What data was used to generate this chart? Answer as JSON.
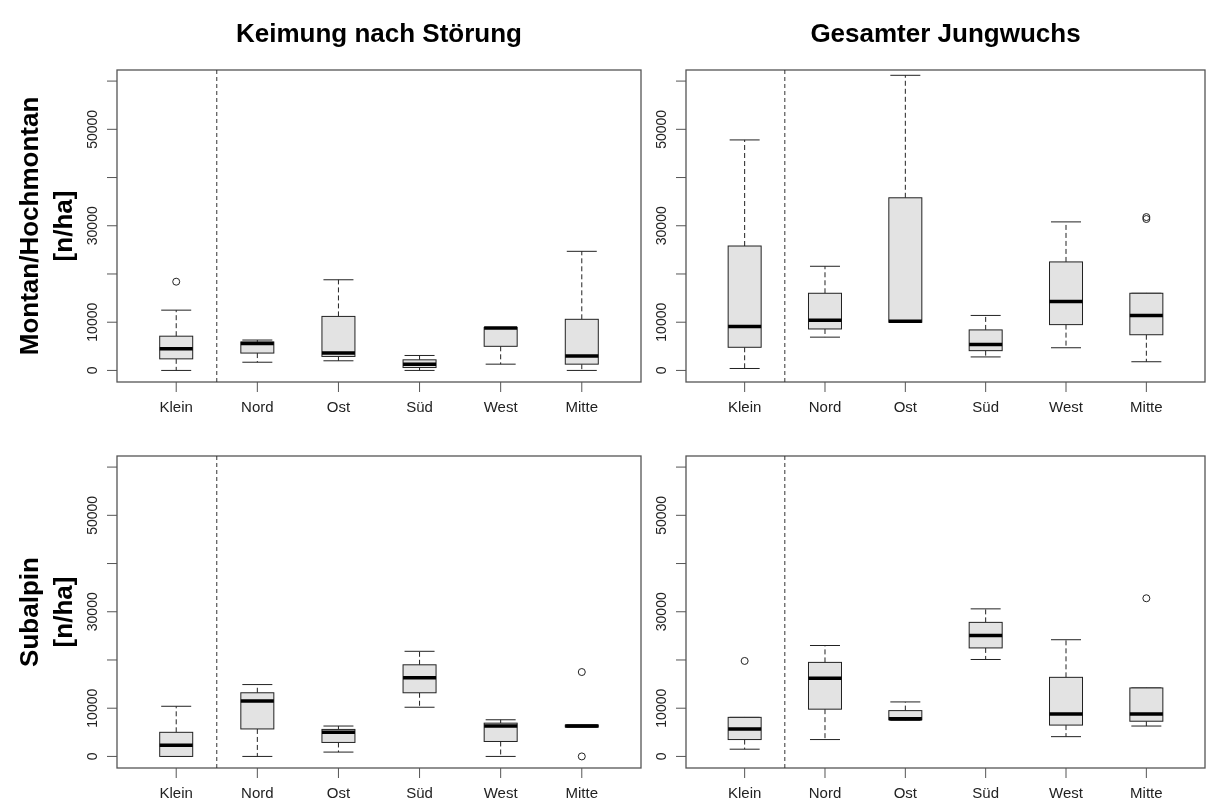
{
  "chart_data": [
    {
      "type": "box",
      "title": "Keimung nach Störung",
      "ylabel": "Montan/Hochmontan [n/ha]",
      "categories": [
        "Klein",
        "Nord",
        "Ost",
        "Süd",
        "West",
        "Mitte"
      ],
      "color": "#e3e3e3",
      "ylim": [
        -2400,
        62300
      ],
      "yticks": [
        0,
        10000,
        {
          "value": 20000,
          "label": null
        },
        30000,
        {
          "value": 40000,
          "label": null
        },
        50000,
        {
          "value": 60000,
          "label": null
        }
      ],
      "boxes": [
        {
          "low": 0,
          "q1": 2400,
          "median": 4500,
          "q3": 7100,
          "high": 12500,
          "outliers": [
            18400
          ]
        },
        {
          "low": 1700,
          "q1": 3600,
          "median": 5600,
          "q3": 5900,
          "high": 6300
        },
        {
          "low": 2000,
          "q1": 2900,
          "median": 3600,
          "q3": 11200,
          "high": 18800
        },
        {
          "low": 0,
          "q1": 600,
          "median": 1300,
          "q3": 2200,
          "high": 3100
        },
        {
          "low": 1300,
          "q1": 5000,
          "median": 8800,
          "q3": 8900,
          "high": 8900
        },
        {
          "low": 0,
          "q1": 1300,
          "median": 3000,
          "q3": 10600,
          "high": 24700
        }
      ]
    },
    {
      "type": "box",
      "title": "Gesamter Jungwuchs",
      "categories": [
        "Klein",
        "Nord",
        "Ost",
        "Süd",
        "West",
        "Mitte"
      ],
      "color": "#e3e3e3",
      "ylim": [
        -2400,
        62300
      ],
      "yticks": [
        0,
        10000,
        {
          "value": 20000,
          "label": null
        },
        30000,
        {
          "value": 40000,
          "label": null
        },
        50000,
        {
          "value": 60000,
          "label": null
        }
      ],
      "boxes": [
        {
          "low": 400,
          "q1": 4800,
          "median": 9100,
          "q3": 25800,
          "high": 47800
        },
        {
          "low": 6900,
          "q1": 8600,
          "median": 10400,
          "q3": 16000,
          "high": 21600
        },
        {
          "low": 10000,
          "q1": 10000,
          "median": 10200,
          "q3": 35800,
          "high": 61200
        },
        {
          "low": 2800,
          "q1": 4100,
          "median": 5400,
          "q3": 8400,
          "high": 11400
        },
        {
          "low": 4700,
          "q1": 9500,
          "median": 14300,
          "q3": 22500,
          "high": 30800
        },
        {
          "low": 1800,
          "q1": 7400,
          "median": 11400,
          "q3": 16000,
          "high": 16000,
          "outliers": [
            31400,
            31800
          ]
        }
      ]
    },
    {
      "type": "box",
      "ylabel": "Subalpin [n/ha]",
      "categories": [
        "Klein",
        "Nord",
        "Ost",
        "Süd",
        "West",
        "Mitte"
      ],
      "color": "#e3e3e3",
      "ylim": [
        -2400,
        62300
      ],
      "yticks": [
        0,
        10000,
        {
          "value": 20000,
          "label": null
        },
        30000,
        {
          "value": 40000,
          "label": null
        },
        50000,
        {
          "value": 60000,
          "label": null
        }
      ],
      "boxes": [
        {
          "low": 0,
          "q1": 0,
          "median": 2300,
          "q3": 5000,
          "high": 10400
        },
        {
          "low": 0,
          "q1": 5700,
          "median": 11500,
          "q3": 13200,
          "high": 14900
        },
        {
          "low": 900,
          "q1": 2900,
          "median": 5000,
          "q3": 5600,
          "high": 6300
        },
        {
          "low": 10200,
          "q1": 13200,
          "median": 16300,
          "q3": 19000,
          "high": 21800
        },
        {
          "low": 0,
          "q1": 3100,
          "median": 6300,
          "q3": 6900,
          "high": 7600
        },
        {
          "low": 6100,
          "q1": 6100,
          "median": 6300,
          "q3": 6500,
          "high": 6500,
          "outliers": [
            17500,
            0
          ]
        }
      ]
    },
    {
      "type": "box",
      "categories": [
        "Klein",
        "Nord",
        "Ost",
        "Süd",
        "West",
        "Mitte"
      ],
      "color": "#e3e3e3",
      "ylim": [
        -2400,
        62300
      ],
      "yticks": [
        0,
        10000,
        {
          "value": 20000,
          "label": null
        },
        30000,
        {
          "value": 40000,
          "label": null
        },
        50000,
        {
          "value": 60000,
          "label": null
        }
      ],
      "boxes": [
        {
          "low": 1500,
          "q1": 3500,
          "median": 5700,
          "q3": 8100,
          "high": 8100,
          "outliers": [
            19800
          ]
        },
        {
          "low": 3500,
          "q1": 9800,
          "median": 16200,
          "q3": 19500,
          "high": 23000
        },
        {
          "low": 7500,
          "q1": 7600,
          "median": 7800,
          "q3": 9500,
          "high": 11300
        },
        {
          "low": 20100,
          "q1": 22500,
          "median": 25100,
          "q3": 27800,
          "high": 30600
        },
        {
          "low": 4100,
          "q1": 6500,
          "median": 8800,
          "q3": 16400,
          "high": 24200
        },
        {
          "low": 6300,
          "q1": 7300,
          "median": 8800,
          "q3": 14200,
          "high": 14200,
          "outliers": [
            32800
          ]
        }
      ]
    }
  ]
}
